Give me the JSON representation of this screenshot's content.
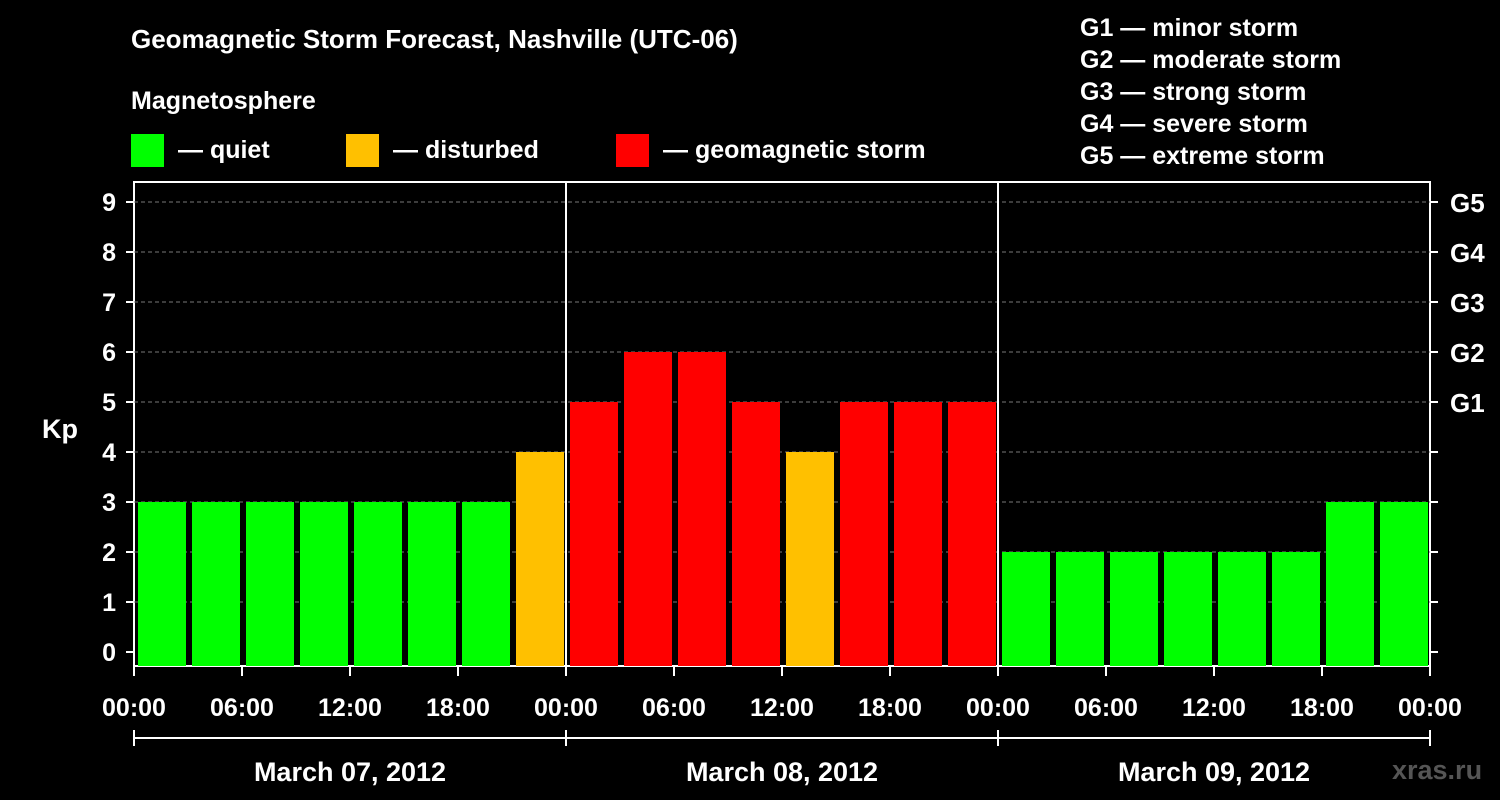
{
  "header": {
    "title": "Geomagnetic Storm Forecast, Nashville (UTC-06)",
    "magnetosphere_label": "Magnetosphere"
  },
  "legend": [
    {
      "label": "— quiet",
      "color": "#00ff00"
    },
    {
      "label": "— disturbed",
      "color": "#ffc000"
    },
    {
      "label": "— geomagnetic storm",
      "color": "#ff0000"
    }
  ],
  "g_scale_legend": [
    "G1 — minor storm",
    "G2 — moderate storm",
    "G3 — strong storm",
    "G4 — severe storm",
    "G5 — extreme storm"
  ],
  "watermark": "xras.ru",
  "chart_data": {
    "type": "bar",
    "ylabel": "Kp",
    "ylim": [
      0,
      9
    ],
    "yticks": [
      "0",
      "1",
      "2",
      "3",
      "4",
      "5",
      "6",
      "7",
      "8",
      "9"
    ],
    "right_axis_labels": [
      {
        "kp": 5,
        "label": "G1"
      },
      {
        "kp": 6,
        "label": "G2"
      },
      {
        "kp": 7,
        "label": "G3"
      },
      {
        "kp": 8,
        "label": "G4"
      },
      {
        "kp": 9,
        "label": "G5"
      }
    ],
    "grid": "dashed horizontal",
    "xtick_labels": [
      "00:00",
      "06:00",
      "12:00",
      "18:00",
      "00:00",
      "06:00",
      "12:00",
      "18:00",
      "00:00",
      "06:00",
      "12:00",
      "18:00",
      "00:00"
    ],
    "days": [
      "March 07, 2012",
      "March 08, 2012",
      "March 09, 2012"
    ],
    "interval_hours": 3,
    "values": [
      3,
      3,
      3,
      3,
      3,
      3,
      3,
      4,
      5,
      6,
      6,
      5,
      4,
      5,
      5,
      5,
      2,
      2,
      2,
      2,
      2,
      2,
      3,
      3
    ],
    "colors": {
      "quiet": "#00ff00",
      "disturbed": "#ffc000",
      "storm": "#ff0000"
    }
  }
}
